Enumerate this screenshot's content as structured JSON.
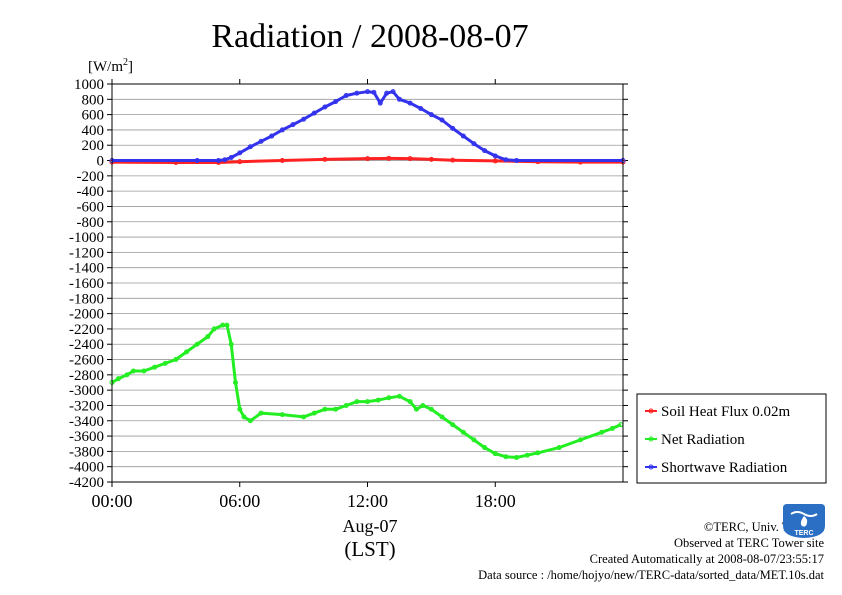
{
  "page": {
    "title": "Radiation / 2008-08-07",
    "credits": [
      "©TERC, Univ. Tsukuba",
      "Observed at TERC Tower site",
      "Created Automatically at 2008-08-07/23:55:17",
      "Data source : /home/hojyo/new/TERC-data/sorted_data/MET.10s.dat"
    ],
    "logo_text": "TERC"
  },
  "colors": {
    "soil_heat_flux": "#ff2222",
    "net_radiation": "#22ee22",
    "shortwave_radiation": "#3333ee",
    "grid": "#999999",
    "logo": "#2a6fc4"
  },
  "chart_data": {
    "type": "line",
    "title": "Radiation / 2008-08-07",
    "ylabel": "[W/m2]",
    "xlabel": "Aug-07 (LST)",
    "x_unit": "hour of day (LST)",
    "xlim": [
      0,
      24
    ],
    "ylim": [
      -4200,
      1000
    ],
    "x_ticks": [
      {
        "value": 0,
        "label": "00:00"
      },
      {
        "value": 6,
        "label": "06:00"
      },
      {
        "value": 12,
        "label": "12:00"
      },
      {
        "value": 18,
        "label": "18:00"
      }
    ],
    "x_date_label": "Aug-07",
    "x_zone_label": "(LST)",
    "y_ticks": [
      1000,
      800,
      600,
      400,
      200,
      0,
      -200,
      -400,
      -600,
      -800,
      -1000,
      -1200,
      -1400,
      -1600,
      -1800,
      -2000,
      -2200,
      -2400,
      -2600,
      -2800,
      -3000,
      -3200,
      -3400,
      -3600,
      -3800,
      -4000,
      -4200
    ],
    "grid": true,
    "legend_position": "bottom-right outside",
    "series": [
      {
        "name": "Soil Heat Flux 0.02m",
        "color": "#ff2222",
        "points": [
          [
            0,
            -20
          ],
          [
            3,
            -25
          ],
          [
            5,
            -25
          ],
          [
            6,
            -15
          ],
          [
            8,
            0
          ],
          [
            10,
            15
          ],
          [
            12,
            25
          ],
          [
            13,
            28
          ],
          [
            14,
            25
          ],
          [
            15,
            15
          ],
          [
            16,
            5
          ],
          [
            18,
            -5
          ],
          [
            20,
            -15
          ],
          [
            22,
            -20
          ],
          [
            24,
            -20
          ]
        ]
      },
      {
        "name": "Net Radiation",
        "color": "#22ee22",
        "points": [
          [
            0,
            -2900
          ],
          [
            0.3,
            -2850
          ],
          [
            0.7,
            -2800
          ],
          [
            1,
            -2750
          ],
          [
            1.5,
            -2750
          ],
          [
            2,
            -2700
          ],
          [
            2.5,
            -2650
          ],
          [
            3,
            -2600
          ],
          [
            3.5,
            -2500
          ],
          [
            4,
            -2400
          ],
          [
            4.5,
            -2300
          ],
          [
            4.8,
            -2200
          ],
          [
            5.2,
            -2150
          ],
          [
            5.4,
            -2150
          ],
          [
            5.6,
            -2400
          ],
          [
            5.8,
            -2900
          ],
          [
            6,
            -3250
          ],
          [
            6.2,
            -3350
          ],
          [
            6.5,
            -3400
          ],
          [
            7,
            -3300
          ],
          [
            8,
            -3320
          ],
          [
            9,
            -3350
          ],
          [
            9.5,
            -3300
          ],
          [
            10,
            -3250
          ],
          [
            10.5,
            -3250
          ],
          [
            11,
            -3200
          ],
          [
            11.5,
            -3150
          ],
          [
            12,
            -3150
          ],
          [
            12.5,
            -3130
          ],
          [
            13,
            -3100
          ],
          [
            13.5,
            -3080
          ],
          [
            14,
            -3150
          ],
          [
            14.3,
            -3250
          ],
          [
            14.6,
            -3200
          ],
          [
            15,
            -3250
          ],
          [
            15.5,
            -3350
          ],
          [
            16,
            -3450
          ],
          [
            16.5,
            -3550
          ],
          [
            17,
            -3650
          ],
          [
            17.5,
            -3750
          ],
          [
            18,
            -3830
          ],
          [
            18.5,
            -3870
          ],
          [
            19,
            -3880
          ],
          [
            19.5,
            -3850
          ],
          [
            20,
            -3820
          ],
          [
            21,
            -3750
          ],
          [
            22,
            -3650
          ],
          [
            23,
            -3550
          ],
          [
            23.5,
            -3500
          ],
          [
            23.9,
            -3450
          ]
        ]
      },
      {
        "name": "Shortwave Radiation",
        "color": "#3333ee",
        "points": [
          [
            0,
            0
          ],
          [
            4,
            0
          ],
          [
            5,
            0
          ],
          [
            5.3,
            10
          ],
          [
            5.6,
            40
          ],
          [
            6,
            100
          ],
          [
            6.5,
            180
          ],
          [
            7,
            250
          ],
          [
            7.5,
            320
          ],
          [
            8,
            400
          ],
          [
            8.5,
            470
          ],
          [
            9,
            540
          ],
          [
            9.5,
            620
          ],
          [
            10,
            700
          ],
          [
            10.5,
            770
          ],
          [
            11,
            850
          ],
          [
            11.5,
            880
          ],
          [
            12,
            900
          ],
          [
            12.3,
            890
          ],
          [
            12.6,
            750
          ],
          [
            12.9,
            880
          ],
          [
            13.2,
            900
          ],
          [
            13.5,
            800
          ],
          [
            14,
            750
          ],
          [
            14.5,
            680
          ],
          [
            15,
            600
          ],
          [
            15.5,
            530
          ],
          [
            16,
            420
          ],
          [
            16.5,
            320
          ],
          [
            17,
            220
          ],
          [
            17.5,
            130
          ],
          [
            18,
            60
          ],
          [
            18.5,
            10
          ],
          [
            19,
            0
          ],
          [
            24,
            0
          ]
        ]
      }
    ]
  }
}
